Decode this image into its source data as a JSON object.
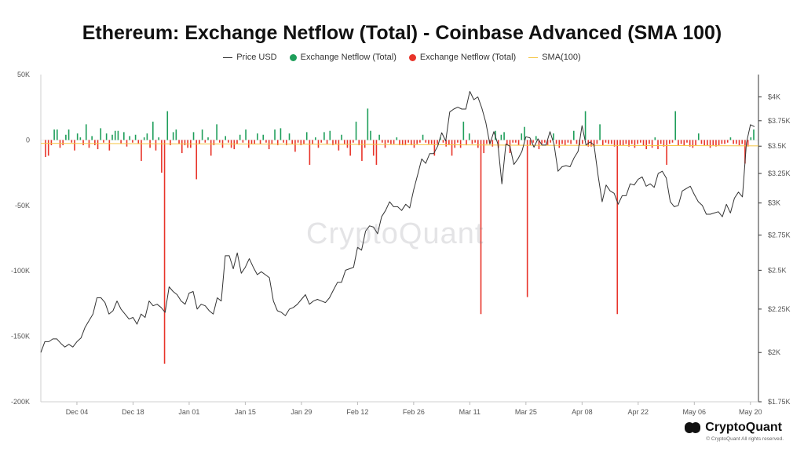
{
  "chart_data": {
    "type": "bar",
    "title": "Ethereum: Exchange Netflow (Total) - Coinbase Advanced (SMA 100)",
    "legend": {
      "position": "top",
      "items": [
        {
          "label": "Price USD",
          "color": "#333333",
          "kind": "line"
        },
        {
          "label": "Exchange Netflow (Total)",
          "color": "#1e9e5a",
          "kind": "dot"
        },
        {
          "label": "Exchange Netflow (Total)",
          "color": "#e8342a",
          "kind": "dot"
        },
        {
          "label": "SMA(100)",
          "color": "#f5c542",
          "kind": "line"
        }
      ]
    },
    "x_axis": {
      "start": "2023-11-25",
      "end": "2024-05-22",
      "tick_labels": [
        "Dec 04",
        "Dec 18",
        "Jan 01",
        "Jan 15",
        "Jan 29",
        "Feb 12",
        "Feb 26",
        "Mar 11",
        "Mar 25",
        "Apr 08",
        "Apr 22",
        "May 06",
        "May 20"
      ],
      "tick_dates": [
        "2023-12-04",
        "2023-12-18",
        "2024-01-01",
        "2024-01-15",
        "2024-01-29",
        "2024-02-12",
        "2024-02-26",
        "2024-03-11",
        "2024-03-25",
        "2024-04-08",
        "2024-04-22",
        "2024-05-06",
        "2024-05-20"
      ]
    },
    "y_left": {
      "min": -200000,
      "max": 50000,
      "ticks": [
        50000,
        0,
        -50000,
        -100000,
        -150000,
        -200000
      ],
      "tick_labels": [
        "50K",
        "0",
        "-50K",
        "-100K",
        "-150K",
        "-200K"
      ]
    },
    "y_right": {
      "scale": "log",
      "min": 1750,
      "max": 4250,
      "ticks": [
        4000,
        3750,
        3500,
        3250,
        3000,
        2750,
        2500,
        2250,
        2000,
        1750
      ],
      "tick_labels": [
        "$4K",
        "$3.75K",
        "$3.5K",
        "$3.25K",
        "$3K",
        "$2.75K",
        "$2.5K",
        "$2.25K",
        "$2K",
        "$1.75K"
      ]
    },
    "netflow_series": {
      "name": "Exchange Netflow (Total)",
      "positive_color": "#1e9e5a",
      "negative_color": "#e8342a",
      "values": [
        -13000,
        -12000,
        -4000,
        8000,
        8000,
        -6000,
        -4000,
        4000,
        8000,
        -2000,
        -8000,
        5000,
        2000,
        -4000,
        12000,
        -6000,
        3000,
        -4000,
        -7000,
        9000,
        -2000,
        5000,
        -8000,
        4000,
        7000,
        7000,
        -3000,
        6000,
        -5000,
        3000,
        -2000,
        4000,
        -3000,
        -16000,
        2000,
        5000,
        -6000,
        14000,
        -8000,
        2000,
        -25000,
        -171000,
        22000,
        -4000,
        6000,
        8000,
        -3000,
        -10000,
        -4000,
        -6000,
        -6000,
        6000,
        -30000,
        -3000,
        8000,
        -2000,
        2000,
        -12000,
        -4000,
        12000,
        -2000,
        -6000,
        3000,
        -2000,
        -6000,
        -7000,
        -3000,
        4000,
        -2000,
        8000,
        -6000,
        -3000,
        -3000,
        5000,
        -3000,
        4000,
        -2000,
        -7000,
        -3000,
        8000,
        -4000,
        9000,
        -2000,
        -4000,
        5000,
        -3000,
        -9000,
        -2000,
        -4000,
        -3000,
        6000,
        -19000,
        -3000,
        2000,
        -6000,
        -2000,
        6000,
        -3000,
        7000,
        -4000,
        -3000,
        -8000,
        4000,
        -3000,
        -6000,
        -12000,
        -2000,
        14000,
        -4000,
        -16000,
        -6000,
        24000,
        7000,
        -12000,
        -19000,
        4000,
        -2000,
        -6000,
        -2000,
        -3000,
        -3000,
        2000,
        -4000,
        -4000,
        -4000,
        -2000,
        -4000,
        -6000,
        -3000,
        -2000,
        4000,
        -2000,
        -3000,
        -3000,
        -12000,
        -3000,
        2000,
        -2000,
        -5000,
        -4000,
        -12000,
        -6000,
        -2000,
        -6000,
        14000,
        -4000,
        5000,
        -3000,
        -2000,
        -6000,
        -133000,
        -10000,
        -3000,
        -2000,
        -5000,
        7000,
        -6000,
        4000,
        6000,
        -4000,
        -10000,
        -2000,
        -2000,
        -4000,
        5000,
        10000,
        -120000,
        -4000,
        -2000,
        3000,
        -7000,
        -3000,
        -2000,
        -4000,
        -2000,
        5000,
        -3000,
        -6000,
        -3000,
        -4000,
        -2000,
        -3000,
        7000,
        -3000,
        -4000,
        -3000,
        22000,
        -5000,
        -5000,
        -5000,
        -3000,
        12000,
        -4000,
        -2000,
        -3000,
        -3000,
        -5000,
        -133000,
        -4000,
        -4000,
        -3000,
        -5000,
        -3000,
        -6000,
        -3000,
        -2000,
        -4000,
        -7000,
        -3000,
        -6000,
        2000,
        -7000,
        -3000,
        -5000,
        -19000,
        -3000,
        -2000,
        22000,
        -4000,
        -3000,
        -4000,
        -2000,
        -5000,
        -6000,
        -4000,
        5000,
        -3000,
        -4000,
        -4000,
        -6000,
        -4000,
        -5000,
        -4000,
        -3000,
        -3000,
        -2000,
        2000,
        -3000,
        -3000,
        -4000,
        -3000,
        -18000,
        -5000,
        2000,
        8000
      ]
    },
    "price_series": {
      "name": "Price USD",
      "color": "#333333",
      "points": [
        [
          "2023-11-25",
          2000
        ],
        [
          "2023-11-26",
          2060
        ],
        [
          "2023-11-27",
          2060
        ],
        [
          "2023-11-28",
          2075
        ],
        [
          "2023-11-29",
          2075
        ],
        [
          "2023-11-30",
          2050
        ],
        [
          "2023-12-01",
          2030
        ],
        [
          "2023-12-02",
          2045
        ],
        [
          "2023-12-03",
          2030
        ],
        [
          "2023-12-04",
          2060
        ],
        [
          "2023-12-05",
          2080
        ],
        [
          "2023-12-06",
          2140
        ],
        [
          "2023-12-07",
          2180
        ],
        [
          "2023-12-08",
          2220
        ],
        [
          "2023-12-09",
          2320
        ],
        [
          "2023-12-10",
          2320
        ],
        [
          "2023-12-11",
          2290
        ],
        [
          "2023-12-12",
          2220
        ],
        [
          "2023-12-13",
          2240
        ],
        [
          "2023-12-14",
          2300
        ],
        [
          "2023-12-15",
          2250
        ],
        [
          "2023-12-16",
          2220
        ],
        [
          "2023-12-17",
          2190
        ],
        [
          "2023-12-18",
          2200
        ],
        [
          "2023-12-19",
          2160
        ],
        [
          "2023-12-20",
          2220
        ],
        [
          "2023-12-21",
          2200
        ],
        [
          "2023-12-22",
          2300
        ],
        [
          "2023-12-23",
          2270
        ],
        [
          "2023-12-24",
          2280
        ],
        [
          "2023-12-25",
          2260
        ],
        [
          "2023-12-26",
          2230
        ],
        [
          "2023-12-27",
          2390
        ],
        [
          "2023-12-28",
          2360
        ],
        [
          "2023-12-29",
          2340
        ],
        [
          "2023-12-30",
          2300
        ],
        [
          "2023-12-31",
          2280
        ],
        [
          "2024-01-01",
          2350
        ],
        [
          "2024-01-02",
          2360
        ],
        [
          "2024-01-03",
          2250
        ],
        [
          "2024-01-04",
          2280
        ],
        [
          "2024-01-05",
          2270
        ],
        [
          "2024-01-06",
          2240
        ],
        [
          "2024-01-07",
          2220
        ],
        [
          "2024-01-08",
          2320
        ],
        [
          "2024-01-09",
          2300
        ],
        [
          "2024-01-10",
          2600
        ],
        [
          "2024-01-11",
          2600
        ],
        [
          "2024-01-12",
          2510
        ],
        [
          "2024-01-13",
          2620
        ],
        [
          "2024-01-14",
          2480
        ],
        [
          "2024-01-15",
          2520
        ],
        [
          "2024-01-16",
          2580
        ],
        [
          "2024-01-17",
          2520
        ],
        [
          "2024-01-18",
          2470
        ],
        [
          "2024-01-19",
          2490
        ],
        [
          "2024-01-20",
          2470
        ],
        [
          "2024-01-21",
          2450
        ],
        [
          "2024-01-22",
          2300
        ],
        [
          "2024-01-23",
          2240
        ],
        [
          "2024-01-24",
          2230
        ],
        [
          "2024-01-25",
          2210
        ],
        [
          "2024-01-26",
          2250
        ],
        [
          "2024-01-27",
          2260
        ],
        [
          "2024-01-28",
          2280
        ],
        [
          "2024-01-29",
          2310
        ],
        [
          "2024-01-30",
          2340
        ],
        [
          "2024-01-31",
          2280
        ],
        [
          "2024-02-01",
          2300
        ],
        [
          "2024-02-02",
          2310
        ],
        [
          "2024-02-03",
          2300
        ],
        [
          "2024-02-04",
          2290
        ],
        [
          "2024-02-05",
          2320
        ],
        [
          "2024-02-06",
          2370
        ],
        [
          "2024-02-07",
          2420
        ],
        [
          "2024-02-08",
          2420
        ],
        [
          "2024-02-09",
          2500
        ],
        [
          "2024-02-10",
          2510
        ],
        [
          "2024-02-11",
          2520
        ],
        [
          "2024-02-12",
          2660
        ],
        [
          "2024-02-13",
          2640
        ],
        [
          "2024-02-14",
          2780
        ],
        [
          "2024-02-15",
          2820
        ],
        [
          "2024-02-16",
          2810
        ],
        [
          "2024-02-17",
          2760
        ],
        [
          "2024-02-18",
          2890
        ],
        [
          "2024-02-19",
          2940
        ],
        [
          "2024-02-20",
          3010
        ],
        [
          "2024-02-21",
          2970
        ],
        [
          "2024-02-22",
          2970
        ],
        [
          "2024-02-23",
          2940
        ],
        [
          "2024-02-24",
          2990
        ],
        [
          "2024-02-25",
          2960
        ],
        [
          "2024-02-26",
          3110
        ],
        [
          "2024-02-27",
          3240
        ],
        [
          "2024-02-28",
          3380
        ],
        [
          "2024-02-29",
          3340
        ],
        [
          "2024-03-01",
          3430
        ],
        [
          "2024-03-02",
          3430
        ],
        [
          "2024-03-03",
          3500
        ],
        [
          "2024-03-04",
          3630
        ],
        [
          "2024-03-05",
          3550
        ],
        [
          "2024-03-06",
          3840
        ],
        [
          "2024-03-07",
          3870
        ],
        [
          "2024-03-08",
          3890
        ],
        [
          "2024-03-09",
          3870
        ],
        [
          "2024-03-10",
          3870
        ],
        [
          "2024-03-11",
          4060
        ],
        [
          "2024-03-12",
          3970
        ],
        [
          "2024-03-13",
          4000
        ],
        [
          "2024-03-14",
          3880
        ],
        [
          "2024-03-15",
          3730
        ],
        [
          "2024-03-16",
          3520
        ],
        [
          "2024-03-17",
          3640
        ],
        [
          "2024-03-18",
          3520
        ],
        [
          "2024-03-19",
          3160
        ],
        [
          "2024-03-20",
          3520
        ],
        [
          "2024-03-21",
          3500
        ],
        [
          "2024-03-22",
          3330
        ],
        [
          "2024-03-23",
          3380
        ],
        [
          "2024-03-24",
          3450
        ],
        [
          "2024-03-25",
          3590
        ],
        [
          "2024-03-26",
          3580
        ],
        [
          "2024-03-27",
          3490
        ],
        [
          "2024-03-28",
          3570
        ],
        [
          "2024-03-29",
          3510
        ],
        [
          "2024-03-30",
          3510
        ],
        [
          "2024-03-31",
          3640
        ],
        [
          "2024-04-01",
          3520
        ],
        [
          "2024-04-02",
          3270
        ],
        [
          "2024-04-03",
          3310
        ],
        [
          "2024-04-04",
          3320
        ],
        [
          "2024-04-05",
          3310
        ],
        [
          "2024-04-06",
          3390
        ],
        [
          "2024-04-07",
          3450
        ],
        [
          "2024-04-08",
          3700
        ],
        [
          "2024-04-09",
          3510
        ],
        [
          "2024-04-10",
          3540
        ],
        [
          "2024-04-11",
          3510
        ],
        [
          "2024-04-12",
          3230
        ],
        [
          "2024-04-13",
          3010
        ],
        [
          "2024-04-14",
          3150
        ],
        [
          "2024-04-15",
          3100
        ],
        [
          "2024-04-16",
          3080
        ],
        [
          "2024-04-17",
          2990
        ],
        [
          "2024-04-18",
          3060
        ],
        [
          "2024-04-19",
          3060
        ],
        [
          "2024-04-20",
          3160
        ],
        [
          "2024-04-21",
          3150
        ],
        [
          "2024-04-22",
          3200
        ],
        [
          "2024-04-23",
          3220
        ],
        [
          "2024-04-24",
          3140
        ],
        [
          "2024-04-25",
          3160
        ],
        [
          "2024-04-26",
          3130
        ],
        [
          "2024-04-27",
          3250
        ],
        [
          "2024-04-28",
          3270
        ],
        [
          "2024-04-29",
          3210
        ],
        [
          "2024-04-30",
          3010
        ],
        [
          "2024-05-01",
          2970
        ],
        [
          "2024-05-02",
          2980
        ],
        [
          "2024-05-03",
          3100
        ],
        [
          "2024-05-04",
          3120
        ],
        [
          "2024-05-05",
          3140
        ],
        [
          "2024-05-06",
          3070
        ],
        [
          "2024-05-07",
          3010
        ],
        [
          "2024-05-08",
          2980
        ],
        [
          "2024-05-09",
          2910
        ],
        [
          "2024-05-10",
          2910
        ],
        [
          "2024-05-11",
          2920
        ],
        [
          "2024-05-12",
          2930
        ],
        [
          "2024-05-13",
          2890
        ],
        [
          "2024-05-14",
          2990
        ],
        [
          "2024-05-15",
          2920
        ],
        [
          "2024-05-16",
          3040
        ],
        [
          "2024-05-17",
          3090
        ],
        [
          "2024-05-18",
          3050
        ],
        [
          "2024-05-19",
          3530
        ],
        [
          "2024-05-20",
          3710
        ],
        [
          "2024-05-21",
          3690
        ]
      ]
    },
    "sma_series": {
      "name": "SMA(100)",
      "color": "#f5c542",
      "points": [
        [
          "2023-11-25",
          -2500
        ],
        [
          "2023-12-10",
          -2700
        ],
        [
          "2023-12-31",
          -3000
        ],
        [
          "2024-01-29",
          -3200
        ],
        [
          "2024-02-26",
          -3500
        ],
        [
          "2024-03-25",
          -4000
        ],
        [
          "2024-04-22",
          -4200
        ],
        [
          "2024-05-22",
          -4500
        ]
      ]
    }
  },
  "watermark": "CryptoQuant",
  "brand": {
    "name": "CryptoQuant",
    "copyright": "© CryptoQuant All rights reserved."
  }
}
